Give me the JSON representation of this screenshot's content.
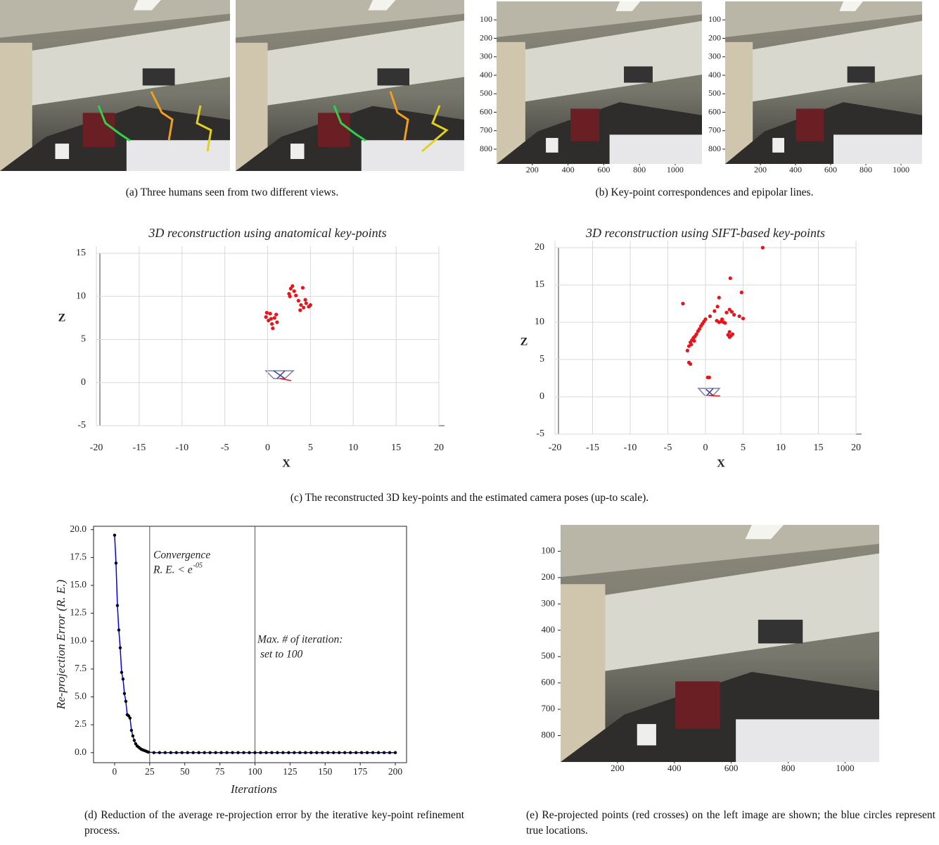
{
  "captions": {
    "a": "(a) Three humans seen from two different views.",
    "b": "(b) Key-point correspondences and epipolar lines.",
    "c": "(c) The reconstructed 3D key-points and the estimated camera poses (up-to scale).",
    "d": "(d) Reduction of the average re-projection error by the iterative key-point refinement process.",
    "e": "(e) Re-projected points (red crosses) on the left image are shown; the blue circles represent true locations."
  },
  "chart_data": [
    {
      "type": "image",
      "xlim": [
        0,
        1150
      ],
      "ylim": [
        0,
        880
      ],
      "y_inverted": true,
      "xticks": [
        200,
        400,
        600,
        800,
        1000
      ],
      "yticks": [
        100,
        200,
        300,
        400,
        500,
        600,
        700,
        800
      ]
    },
    {
      "type": "image",
      "xlim": [
        0,
        1120
      ],
      "ylim": [
        0,
        880
      ],
      "y_inverted": true,
      "xticks": [
        200,
        400,
        600,
        800,
        1000
      ],
      "yticks": [
        100,
        200,
        300,
        400,
        500,
        600,
        700,
        800
      ]
    },
    {
      "type": "scatter",
      "title": "3D reconstruction using anatomical key-points",
      "xlabel": "X",
      "ylabel": "Z",
      "color": "#e8141c",
      "grid": true,
      "xlim": [
        -20,
        20
      ],
      "ylim": [
        -5,
        15
      ],
      "xticks": [
        -20,
        -15,
        -10,
        -5,
        0,
        5,
        10,
        15,
        20
      ],
      "yticks": [
        -5,
        0,
        5,
        10,
        15
      ],
      "x": [
        -0.2,
        0.1,
        0.3,
        0.5,
        0.6,
        0.8,
        1.0,
        -0.1,
        1.1,
        0.4,
        2.5,
        2.7,
        2.9,
        3.1,
        3.3,
        2.6,
        3.6,
        3.9,
        4.2,
        4.5,
        4.8,
        4.1,
        4.4,
        5.0,
        3.8
      ],
      "values": [
        7.6,
        7.2,
        8.0,
        6.8,
        6.3,
        7.5,
        7.9,
        8.1,
        7.0,
        7.4,
        10.3,
        10.9,
        11.2,
        10.6,
        10.1,
        10.0,
        9.5,
        9.0,
        8.7,
        9.2,
        8.8,
        11.0,
        9.6,
        9.0,
        8.4
      ]
    },
    {
      "type": "scatter",
      "title": "3D reconstruction using SIFT-based key-points",
      "xlabel": "X",
      "ylabel": "Z",
      "color": "#e8141c",
      "grid": true,
      "xlim": [
        -20,
        20
      ],
      "ylim": [
        -5,
        20
      ],
      "xticks": [
        -20,
        -15,
        -10,
        -5,
        0,
        5,
        10,
        15,
        20
      ],
      "yticks": [
        -5,
        0,
        5,
        10,
        15,
        20
      ],
      "x": [
        -2.4,
        -2.2,
        -2.0,
        -1.8,
        -1.6,
        -1.4,
        -1.2,
        -1.0,
        -0.8,
        -0.6,
        -0.4,
        -0.2,
        0.0,
        -1.9,
        -1.5,
        -2.2,
        -2.0,
        -3.0,
        0.6,
        1.2,
        1.6,
        1.8,
        1.5,
        1.8,
        2.1,
        2.4,
        2.6,
        2.2,
        3.0,
        3.2,
        3.4,
        3.6,
        3.2,
        2.8,
        3.2,
        3.5,
        3.8,
        3.3,
        4.8,
        4.5,
        5.0,
        0.3,
        0.5,
        7.6
      ],
      "values": [
        6.2,
        6.8,
        7.3,
        7.6,
        7.9,
        8.1,
        8.4,
        8.8,
        9.1,
        9.5,
        9.8,
        10.1,
        10.4,
        7.0,
        7.5,
        4.6,
        4.4,
        12.5,
        10.8,
        11.5,
        12.1,
        13.3,
        10.2,
        10.0,
        10.1,
        10.0,
        9.9,
        10.4,
        8.3,
        8.0,
        8.2,
        8.4,
        8.7,
        11.3,
        11.7,
        11.4,
        11.0,
        15.9,
        14.0,
        10.8,
        10.5,
        2.6,
        2.6,
        20.0
      ]
    },
    {
      "type": "line",
      "xlabel": "Iterations",
      "ylabel": "Re-projection Error (R. E.)",
      "color": "#0000ff",
      "marker_color": "#000000",
      "xlim": [
        -15,
        208
      ],
      "ylim": [
        -0.9,
        20.3
      ],
      "xticks": [
        0,
        25,
        50,
        75,
        100,
        125,
        150,
        175,
        200
      ],
      "yticks": [
        {
          "value": 0,
          "label": "0.0"
        },
        2.5,
        {
          "value": 5,
          "label": "5.0"
        },
        7.5,
        {
          "value": 10,
          "label": "10.0"
        },
        12.5,
        {
          "value": 15,
          "label": "15.0"
        },
        17.5,
        {
          "value": 20,
          "label": "20.0"
        }
      ],
      "vlines": [
        25,
        100
      ],
      "annotations": [
        "Convergence",
        "R. E. < e",
        "-05",
        "Max. # of iteration:",
        "set to 100"
      ],
      "x": [
        0,
        1,
        2,
        3,
        4,
        5,
        6,
        7,
        8,
        9,
        10,
        11,
        12,
        13,
        14,
        15,
        16,
        17,
        18,
        19,
        20,
        21,
        22,
        23,
        24,
        28,
        32,
        36,
        40,
        44,
        48,
        52,
        56,
        60,
        64,
        68,
        72,
        76,
        80,
        84,
        88,
        92,
        96,
        100,
        104,
        108,
        112,
        116,
        120,
        124,
        128,
        132,
        136,
        140,
        144,
        148,
        152,
        156,
        160,
        164,
        168,
        172,
        176,
        180,
        184,
        188,
        192,
        196,
        200
      ],
      "values": [
        19.5,
        17.0,
        13.2,
        11.0,
        9.4,
        7.2,
        6.6,
        5.3,
        4.6,
        3.4,
        3.3,
        3.1,
        2.0,
        1.5,
        1.1,
        0.8,
        0.6,
        0.5,
        0.4,
        0.3,
        0.25,
        0.2,
        0.15,
        0.1,
        0.05,
        0,
        0,
        0,
        0,
        0,
        0,
        0,
        0,
        0,
        0,
        0,
        0,
        0,
        0,
        0,
        0,
        0,
        0,
        0,
        0,
        0,
        0,
        0,
        0,
        0,
        0,
        0,
        0,
        0,
        0,
        0,
        0,
        0,
        0,
        0,
        0,
        0,
        0,
        0,
        0,
        0,
        0,
        0,
        0
      ]
    },
    {
      "type": "image",
      "xlim": [
        0,
        1120
      ],
      "ylim": [
        0,
        900
      ],
      "y_inverted": true,
      "xticks": [
        200,
        400,
        600,
        800,
        1000
      ],
      "yticks": [
        100,
        200,
        300,
        400,
        500,
        600,
        700,
        800
      ]
    }
  ]
}
